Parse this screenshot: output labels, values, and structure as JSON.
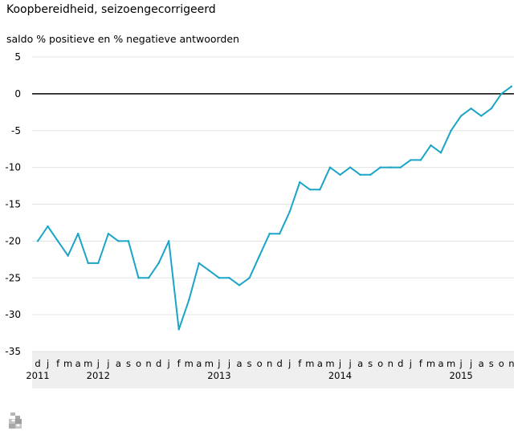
{
  "chart_data": {
    "type": "line",
    "title": "Koopbereidheid, seizoengecorrigeerd",
    "subtitle": "saldo % positieve en % negatieve antwoorden",
    "xlabel": "",
    "ylabel": "saldo % positieve en % negatieve antwoorden",
    "ylim": [
      -35,
      5
    ],
    "yticks": [
      5,
      0,
      -5,
      -10,
      -15,
      -20,
      -25,
      -30,
      -35
    ],
    "grid": true,
    "legend": "none",
    "colors": {
      "line": "#1aa5c7",
      "zero": "#000000",
      "grid": "#e3e3e3",
      "axis_band": "#efefef"
    },
    "x": [
      "2011-12",
      "2012-01",
      "2012-02",
      "2012-03",
      "2012-04",
      "2012-05",
      "2012-06",
      "2012-07",
      "2012-08",
      "2012-09",
      "2012-10",
      "2012-11",
      "2012-12",
      "2013-01",
      "2013-02",
      "2013-03",
      "2013-04",
      "2013-05",
      "2013-06",
      "2013-07",
      "2013-08",
      "2013-09",
      "2013-10",
      "2013-11",
      "2013-12",
      "2014-01",
      "2014-02",
      "2014-03",
      "2014-04",
      "2014-05",
      "2014-06",
      "2014-07",
      "2014-08",
      "2014-09",
      "2014-10",
      "2014-11",
      "2014-12",
      "2015-01",
      "2015-02",
      "2015-03",
      "2015-04",
      "2015-05",
      "2015-06",
      "2015-07",
      "2015-08",
      "2015-09",
      "2015-10",
      "2015-11"
    ],
    "month_labels": [
      "d",
      "j",
      "f",
      "m",
      "a",
      "m",
      "j",
      "j",
      "a",
      "s",
      "o",
      "n",
      "d",
      "j",
      "f",
      "m",
      "a",
      "m",
      "j",
      "j",
      "a",
      "s",
      "o",
      "n",
      "d",
      "j",
      "f",
      "m",
      "a",
      "m",
      "j",
      "j",
      "a",
      "s",
      "o",
      "n",
      "d",
      "j",
      "f",
      "m",
      "a",
      "m",
      "j",
      "j",
      "a",
      "s",
      "o",
      "n"
    ],
    "year_labels": [
      {
        "label": "2011",
        "month": "2011-12"
      },
      {
        "label": "2012",
        "month": "2012-06"
      },
      {
        "label": "2013",
        "month": "2013-06"
      },
      {
        "label": "2014",
        "month": "2014-06"
      },
      {
        "label": "2015",
        "month": "2015-06"
      }
    ],
    "series": [
      {
        "values": [
          -20,
          -18,
          -20,
          -22,
          -19,
          -23,
          -23,
          -19,
          -20,
          -20,
          -25,
          -25,
          -23,
          -20,
          -32,
          -28,
          -23,
          -24,
          -25,
          -25,
          -26,
          -25,
          -22,
          -19,
          -19,
          -16,
          -12,
          -13,
          -13,
          -10,
          -11,
          -10,
          -11,
          -11,
          -10,
          -10,
          -10,
          -9,
          -9,
          -7,
          -8,
          -5,
          -3,
          -2,
          -3,
          -2,
          0,
          1
        ]
      }
    ]
  },
  "logo": {
    "icon": "cbs-logo-icon"
  }
}
